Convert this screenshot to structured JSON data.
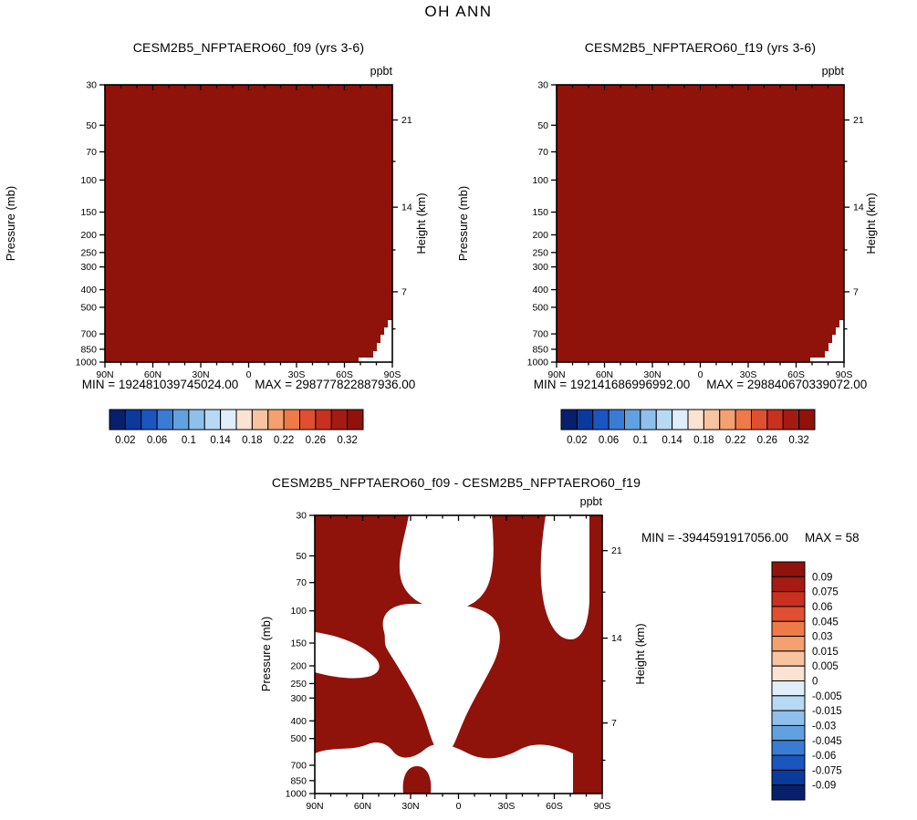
{
  "page_title": "OH ANN",
  "masked_color": "#ffffff",
  "chart_data": [
    {
      "type": "heatmap",
      "title": "CESM2B5_NFPTAERO60_f09 (yrs 3-6)",
      "units": "ppbt",
      "fill_color": "#8f130b",
      "x_axis": {
        "tick_labels": [
          "90N",
          "60N",
          "30N",
          "0",
          "30S",
          "60S",
          "90S"
        ]
      },
      "y_axis": {
        "label": "Pressure (mb)",
        "scale": "log",
        "range": [
          30,
          1000
        ],
        "tick_labels": [
          "30",
          "50",
          "70",
          "100",
          "150",
          "200",
          "250",
          "300",
          "400",
          "500",
          "700",
          "850",
          "1000"
        ]
      },
      "y2_axis": {
        "label": "Height (km)",
        "tick_labels": [
          "21",
          "14",
          "7"
        ]
      },
      "stats": {
        "min_label": "MIN = 192481039745024.00",
        "max_label": "MAX = 298777822887936.00"
      },
      "colorbar": {
        "orientation": "horizontal",
        "tick_labels": [
          "0.02",
          "0.06",
          "0.1",
          "0.14",
          "0.18",
          "0.22",
          "0.26",
          "0.32"
        ],
        "colors": [
          "#08206b",
          "#0a3a9b",
          "#1a55c0",
          "#3a7bd4",
          "#62a1e0",
          "#8fc0ec",
          "#b8d9f4",
          "#dfeefa",
          "#fbe3d4",
          "#f8c4a0",
          "#f4a070",
          "#ee7a48",
          "#e05030",
          "#c83020",
          "#a31b12",
          "#8f130b"
        ]
      },
      "white_paths": [
        "M315,258 L310,258 L310,266 L306,266 L306,274 L302,274 L302,283 L298,283 L298,292 L294,292 L294,304 L315,304 Z",
        "M278,299 L294,299 L294,304 L278,304 Z"
      ],
      "red_overlay_paths": []
    },
    {
      "type": "heatmap",
      "title": "CESM2B5_NFPTAERO60_f19 (yrs 3-6)",
      "units": "ppbt",
      "fill_color": "#8f130b",
      "x_axis": {
        "tick_labels": [
          "90N",
          "60N",
          "30N",
          "0",
          "30S",
          "60S",
          "90S"
        ]
      },
      "y_axis": {
        "label": "Pressure (mb)",
        "scale": "log",
        "range": [
          30,
          1000
        ],
        "tick_labels": [
          "30",
          "50",
          "70",
          "100",
          "150",
          "200",
          "250",
          "300",
          "400",
          "500",
          "700",
          "850",
          "1000"
        ]
      },
      "y2_axis": {
        "label": "Height (km)",
        "tick_labels": [
          "21",
          "14",
          "7"
        ]
      },
      "stats": {
        "min_label": "MIN = 192141686996992.00",
        "max_label": "MAX = 298840670339072.00"
      },
      "colorbar": {
        "orientation": "horizontal",
        "tick_labels": [
          "0.02",
          "0.06",
          "0.1",
          "0.14",
          "0.18",
          "0.22",
          "0.26",
          "0.32"
        ],
        "colors": [
          "#08206b",
          "#0a3a9b",
          "#1a55c0",
          "#3a7bd4",
          "#62a1e0",
          "#8fc0ec",
          "#b8d9f4",
          "#dfeefa",
          "#fbe3d4",
          "#f8c4a0",
          "#f4a070",
          "#ee7a48",
          "#e05030",
          "#c83020",
          "#a31b12",
          "#8f130b"
        ]
      },
      "white_paths": [
        "M315,258 L310,258 L310,266 L306,266 L306,274 L302,274 L302,283 L298,283 L298,292 L294,292 L294,304 L315,304 Z",
        "M278,299 L294,299 L294,304 L278,304 Z"
      ],
      "red_overlay_paths": []
    },
    {
      "type": "heatmap",
      "title": "CESM2B5_NFPTAERO60_f09 - CESM2B5_NFPTAERO60_f19",
      "units": "ppbt",
      "fill_color": "#8f130b",
      "x_axis": {
        "tick_labels": [
          "90N",
          "60N",
          "30N",
          "0",
          "30S",
          "60S",
          "90S"
        ]
      },
      "y_axis": {
        "label": "Pressure (mb)",
        "scale": "log",
        "range": [
          30,
          1000
        ],
        "tick_labels": [
          "30",
          "50",
          "70",
          "100",
          "150",
          "200",
          "250",
          "300",
          "400",
          "500",
          "700",
          "850",
          "1000"
        ]
      },
      "y2_axis": {
        "label": "Height (km)",
        "tick_labels": [
          "21",
          "14",
          "7"
        ]
      },
      "stats": {
        "min_label": "MIN = -3944591917056.00",
        "max_label": "MAX = 58"
      },
      "colorbar": {
        "orientation": "vertical",
        "tick_labels": [
          "0.09",
          "0.075",
          "0.06",
          "0.045",
          "0.03",
          "0.015",
          "0.005",
          "0",
          "-0.005",
          "-0.015",
          "-0.03",
          "-0.045",
          "-0.06",
          "-0.075",
          "-0.09"
        ],
        "colors": [
          "#8f130b",
          "#a31b12",
          "#c83020",
          "#e05030",
          "#ee7a48",
          "#f4a070",
          "#f8c4a0",
          "#fbe3d4",
          "#dfeefa",
          "#b8d9f4",
          "#8fc0ec",
          "#62a1e0",
          "#3a7bd4",
          "#1a55c0",
          "#0a3a9b",
          "#08206b"
        ]
      },
      "white_paths": [
        "M103,0 C98,26 90,48 94,68 C98,88 117,101 140,103 C163,105 182,96 190,76 C198,56 196,26 194,0 Z",
        "M253,0 C248,32 245,66 251,96 C256,120 266,135 279,136 C292,137 300,121 301,93 L301,0 Z",
        "M76,128 C70,108 84,96 110,97 C136,98 168,94 190,108 C206,118 206,140 196,162 C186,183 172,204 162,228 C154,247 150,261 142,262 C133,263 128,246 122,227 C112,197 92,168 80,148 C75,140 78,136 76,128 Z",
        "M0,128 C28,132 52,142 66,156 C74,164 72,174 58,177 C38,181 14,176 0,172 Z",
        "M0,261 C18,253 40,259 58,251 C70,246 80,251 86,259 C94,269 108,267 120,257 C134,245 152,253 168,261 C186,270 206,267 224,257 C244,246 266,253 283,261 L283,305 L0,305 Z"
      ],
      "red_overlay_paths": [
        "M97,305 C95,287 101,275 112,275 C123,275 129,287 127,305 Z"
      ]
    }
  ]
}
